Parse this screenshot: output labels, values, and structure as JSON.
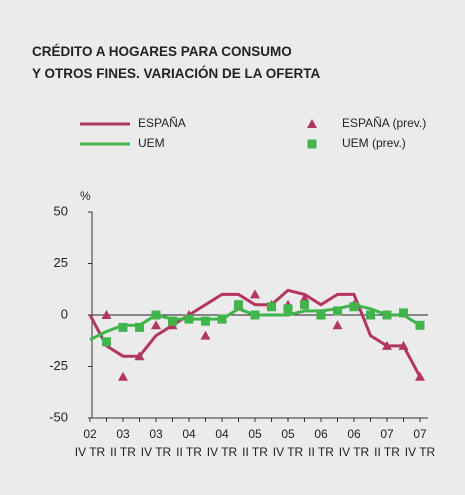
{
  "chart_data": {
    "type": "line",
    "title_lines": [
      "CRÉDITO A HOGARES PARA CONSUMO",
      "Y OTROS FINES. VARIACIÓN DE LA OFERTA"
    ],
    "y_unit": "%",
    "categories": [
      {
        "year": "02",
        "quarter": "IV TR"
      },
      null,
      {
        "year": "03",
        "quarter": "II TR"
      },
      null,
      {
        "year": "03",
        "quarter": "IV TR"
      },
      null,
      {
        "year": "04",
        "quarter": "II TR"
      },
      null,
      {
        "year": "04",
        "quarter": "IV TR"
      },
      null,
      {
        "year": "05",
        "quarter": "II TR"
      },
      null,
      {
        "year": "05",
        "quarter": "IV TR"
      },
      null,
      {
        "year": "06",
        "quarter": "II TR"
      },
      null,
      {
        "year": "06",
        "quarter": "IV TR"
      },
      null,
      {
        "year": "07",
        "quarter": "II TR"
      },
      null,
      {
        "year": "07",
        "quarter": "IV TR"
      }
    ],
    "series": [
      {
        "name": "ESPAÑA",
        "color": "#b2365f",
        "marker": "line",
        "values": [
          0,
          -15,
          -20,
          -20,
          -10,
          -5,
          0,
          5,
          10,
          10,
          5,
          5,
          12,
          10,
          5,
          10,
          10,
          -10,
          -15,
          -15,
          -30
        ]
      },
      {
        "name": "UEM",
        "color": "#3fb54b",
        "marker": "line",
        "values": [
          -12,
          -8,
          -5,
          -5,
          0,
          -2,
          -2,
          -2,
          -2,
          3,
          0,
          0,
          0,
          2,
          2,
          3,
          5,
          3,
          0,
          0,
          -5
        ]
      },
      {
        "name": "ESPAÑA (prev.)",
        "color": "#b2365f",
        "marker": "triangle",
        "values": [
          null,
          0,
          -30,
          -20,
          -5,
          -5,
          0,
          -10,
          -2,
          5,
          10,
          5,
          5,
          8,
          0,
          -5,
          5,
          0,
          -15,
          -15,
          -30
        ]
      },
      {
        "name": "UEM (prev.)",
        "color": "#3fb54b",
        "marker": "square",
        "values": [
          null,
          -13,
          -6,
          -6,
          0,
          -3,
          -2,
          -3,
          -2,
          5,
          0,
          4,
          3,
          5,
          0,
          2,
          4,
          0,
          0,
          1,
          -5
        ]
      }
    ],
    "ylim": [
      -50,
      50
    ],
    "yticks": [
      50,
      25,
      0,
      -25,
      -50
    ]
  }
}
